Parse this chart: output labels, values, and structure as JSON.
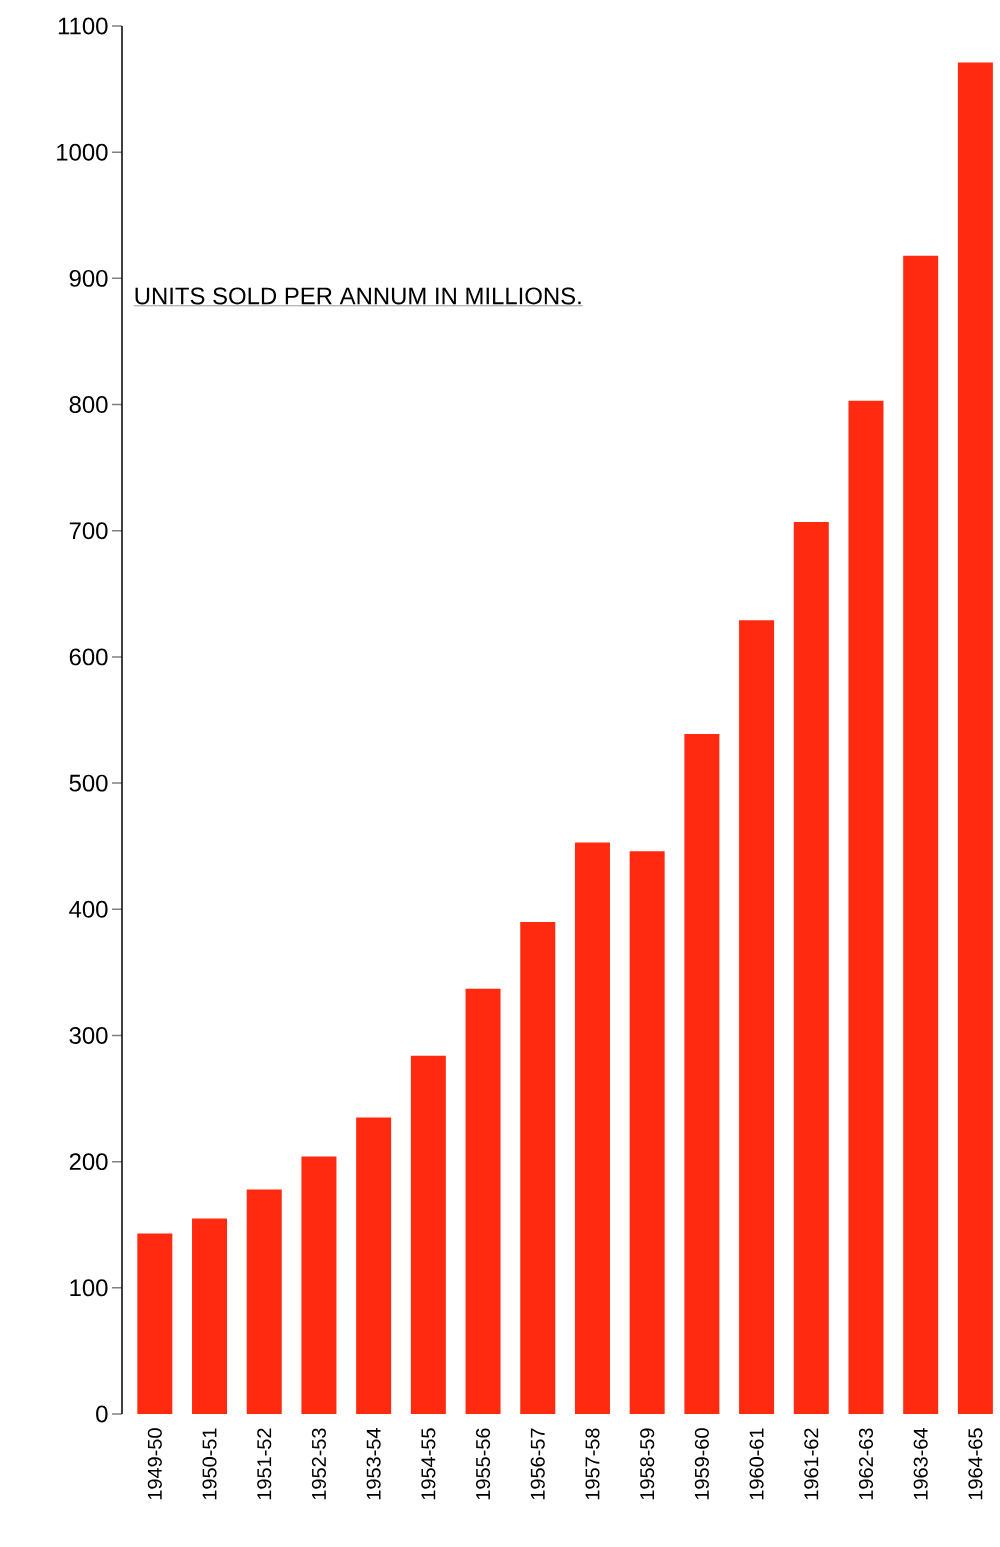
{
  "chart_data": {
    "type": "bar",
    "title": "UNITS SOLD PER ANNUM IN MILLIONS.",
    "categories": [
      "1949-50",
      "1950-51",
      "1951-52",
      "1952-53",
      "1953-54",
      "1954-55",
      "1955-56",
      "1956-57",
      "1957-58",
      "1958-59",
      "1959-60",
      "1960-61",
      "1961-62",
      "1962-63",
      "1963-64",
      "1964-65"
    ],
    "values": [
      143,
      155,
      178,
      204,
      235,
      284,
      337,
      390,
      453,
      446,
      539,
      629,
      707,
      803,
      918,
      1071
    ],
    "color": "#ff2a10",
    "ylim": [
      0,
      1100
    ],
    "yticks": [
      0,
      100,
      200,
      300,
      400,
      500,
      600,
      700,
      800,
      900,
      1000,
      1100
    ],
    "grid": false
  }
}
